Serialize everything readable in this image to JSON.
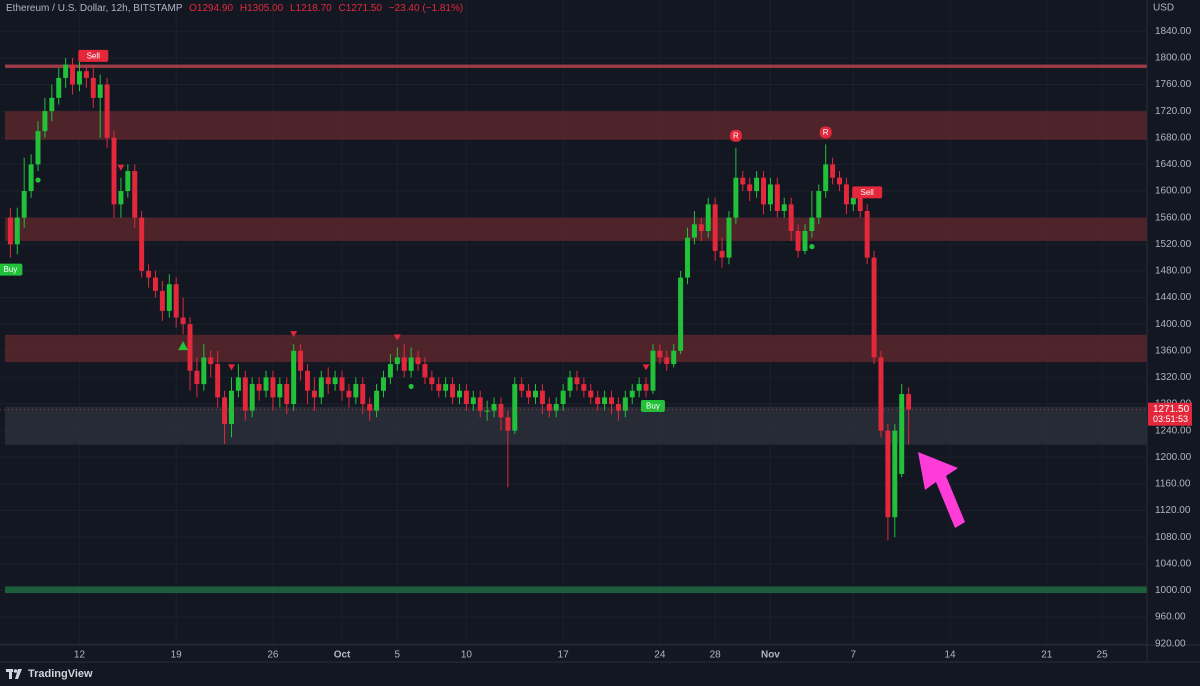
{
  "chart_data": {
    "type": "candlestick",
    "title": "Ethereum / U.S. Dollar, 12h, BITSTAMP",
    "ohlc_legend": [
      "O1294.90",
      "H1305.00",
      "L1218.70",
      "C1271.50",
      "−23.40 (−1.81%)"
    ],
    "currency": "USD",
    "brand": "TradingView",
    "up_color": "#22c13a",
    "down_color": "#e3283c",
    "grid": true,
    "ylim": [
      918,
      1887
    ],
    "yticks": [
      {
        "value": 920,
        "label": "920.00"
      },
      {
        "value": 960,
        "label": "960.00"
      },
      {
        "value": 1000,
        "label": "1000.00"
      },
      {
        "value": 1040,
        "label": "1040.00"
      },
      {
        "value": 1080,
        "label": "1080.00"
      },
      {
        "value": 1120,
        "label": "1120.00"
      },
      {
        "value": 1160,
        "label": "1160.00"
      },
      {
        "value": 1200,
        "label": "1200.00"
      },
      {
        "value": 1240,
        "label": "1240.00"
      },
      {
        "value": 1280,
        "label": "1280.00"
      },
      {
        "value": 1320,
        "label": "1320.00"
      },
      {
        "value": 1360,
        "label": "1360.00"
      },
      {
        "value": 1400,
        "label": "1400.00"
      },
      {
        "value": 1440,
        "label": "1440.00"
      },
      {
        "value": 1480,
        "label": "1480.00"
      },
      {
        "value": 1520,
        "label": "1520.00"
      },
      {
        "value": 1560,
        "label": "1560.00"
      },
      {
        "value": 1600,
        "label": "1600.00"
      },
      {
        "value": 1640,
        "label": "1640.00"
      },
      {
        "value": 1680,
        "label": "1680.00"
      },
      {
        "value": 1720,
        "label": "1720.00"
      },
      {
        "value": 1760,
        "label": "1760.00"
      },
      {
        "value": 1800,
        "label": "1800.00"
      },
      {
        "value": 1840,
        "label": "1840.00"
      }
    ],
    "xlim": [
      -1.5,
      164.5
    ],
    "xticks": [
      {
        "value": 10,
        "label": "12"
      },
      {
        "value": 24,
        "label": "19"
      },
      {
        "value": 38,
        "label": "26"
      },
      {
        "value": 48,
        "label": "Oct"
      },
      {
        "value": 56,
        "label": "5"
      },
      {
        "value": 66,
        "label": "10"
      },
      {
        "value": 80,
        "label": "17"
      },
      {
        "value": 94,
        "label": "24"
      },
      {
        "value": 102,
        "label": "28"
      },
      {
        "value": 110,
        "label": "Nov"
      },
      {
        "value": 122,
        "label": "7"
      },
      {
        "value": 136,
        "label": "14"
      },
      {
        "value": 150,
        "label": "21"
      },
      {
        "value": 158,
        "label": "25"
      }
    ],
    "ohlc": [
      [
        1560,
        1575,
        1500,
        1520
      ],
      [
        1520,
        1575,
        1505,
        1560
      ],
      [
        1560,
        1650,
        1545,
        1600
      ],
      [
        1600,
        1655,
        1590,
        1640
      ],
      [
        1640,
        1705,
        1630,
        1690
      ],
      [
        1690,
        1740,
        1680,
        1720
      ],
      [
        1720,
        1760,
        1705,
        1740
      ],
      [
        1740,
        1785,
        1730,
        1770
      ],
      [
        1770,
        1800,
        1755,
        1790
      ],
      [
        1790,
        1800,
        1745,
        1760
      ],
      [
        1760,
        1795,
        1750,
        1780
      ],
      [
        1780,
        1790,
        1755,
        1770
      ],
      [
        1770,
        1785,
        1725,
        1740
      ],
      [
        1740,
        1775,
        1680,
        1760
      ],
      [
        1760,
        1770,
        1665,
        1680
      ],
      [
        1680,
        1690,
        1560,
        1580
      ],
      [
        1580,
        1620,
        1560,
        1600
      ],
      [
        1600,
        1640,
        1590,
        1630
      ],
      [
        1630,
        1640,
        1545,
        1560
      ],
      [
        1560,
        1570,
        1470,
        1480
      ],
      [
        1480,
        1490,
        1455,
        1470
      ],
      [
        1470,
        1480,
        1440,
        1450
      ],
      [
        1450,
        1465,
        1405,
        1420
      ],
      [
        1420,
        1475,
        1410,
        1460
      ],
      [
        1460,
        1470,
        1395,
        1410
      ],
      [
        1410,
        1440,
        1385,
        1400
      ],
      [
        1400,
        1410,
        1300,
        1330
      ],
      [
        1330,
        1350,
        1290,
        1310
      ],
      [
        1310,
        1370,
        1300,
        1350
      ],
      [
        1350,
        1360,
        1320,
        1340
      ],
      [
        1340,
        1360,
        1275,
        1290
      ],
      [
        1290,
        1300,
        1220,
        1250
      ],
      [
        1250,
        1320,
        1230,
        1300
      ],
      [
        1300,
        1340,
        1290,
        1320
      ],
      [
        1320,
        1330,
        1255,
        1270
      ],
      [
        1270,
        1320,
        1260,
        1310
      ],
      [
        1310,
        1320,
        1285,
        1300
      ],
      [
        1300,
        1330,
        1290,
        1320
      ],
      [
        1320,
        1330,
        1270,
        1290
      ],
      [
        1290,
        1320,
        1275,
        1310
      ],
      [
        1310,
        1320,
        1265,
        1280
      ],
      [
        1280,
        1370,
        1270,
        1360
      ],
      [
        1360,
        1370,
        1315,
        1330
      ],
      [
        1330,
        1340,
        1280,
        1300
      ],
      [
        1300,
        1320,
        1270,
        1290
      ],
      [
        1290,
        1330,
        1280,
        1320
      ],
      [
        1320,
        1335,
        1295,
        1310
      ],
      [
        1310,
        1330,
        1300,
        1320
      ],
      [
        1320,
        1330,
        1285,
        1300
      ],
      [
        1300,
        1310,
        1275,
        1290
      ],
      [
        1290,
        1320,
        1280,
        1310
      ],
      [
        1310,
        1320,
        1265,
        1280
      ],
      [
        1280,
        1290,
        1255,
        1270
      ],
      [
        1270,
        1310,
        1260,
        1300
      ],
      [
        1300,
        1330,
        1290,
        1320
      ],
      [
        1320,
        1355,
        1310,
        1340
      ],
      [
        1340,
        1365,
        1330,
        1350
      ],
      [
        1350,
        1370,
        1320,
        1330
      ],
      [
        1330,
        1365,
        1320,
        1350
      ],
      [
        1350,
        1360,
        1330,
        1340
      ],
      [
        1340,
        1350,
        1310,
        1320
      ],
      [
        1320,
        1330,
        1300,
        1310
      ],
      [
        1310,
        1320,
        1290,
        1300
      ],
      [
        1300,
        1320,
        1290,
        1310
      ],
      [
        1310,
        1320,
        1280,
        1290
      ],
      [
        1290,
        1310,
        1280,
        1300
      ],
      [
        1300,
        1310,
        1270,
        1280
      ],
      [
        1280,
        1300,
        1270,
        1290
      ],
      [
        1290,
        1300,
        1260,
        1270
      ],
      [
        1270,
        1285,
        1255,
        1270
      ],
      [
        1270,
        1290,
        1260,
        1280
      ],
      [
        1280,
        1290,
        1240,
        1260
      ],
      [
        1260,
        1270,
        1155,
        1240
      ],
      [
        1240,
        1320,
        1235,
        1310
      ],
      [
        1310,
        1320,
        1290,
        1300
      ],
      [
        1300,
        1310,
        1280,
        1290
      ],
      [
        1290,
        1310,
        1280,
        1300
      ],
      [
        1300,
        1310,
        1265,
        1280
      ],
      [
        1280,
        1290,
        1260,
        1270
      ],
      [
        1270,
        1290,
        1260,
        1280
      ],
      [
        1280,
        1310,
        1270,
        1300
      ],
      [
        1300,
        1330,
        1290,
        1320
      ],
      [
        1320,
        1330,
        1300,
        1310
      ],
      [
        1310,
        1320,
        1290,
        1300
      ],
      [
        1300,
        1310,
        1280,
        1290
      ],
      [
        1290,
        1300,
        1270,
        1280
      ],
      [
        1280,
        1300,
        1270,
        1290
      ],
      [
        1290,
        1300,
        1265,
        1280
      ],
      [
        1280,
        1290,
        1255,
        1270
      ],
      [
        1270,
        1300,
        1260,
        1290
      ],
      [
        1290,
        1310,
        1280,
        1300
      ],
      [
        1300,
        1320,
        1290,
        1310
      ],
      [
        1310,
        1320,
        1290,
        1300
      ],
      [
        1300,
        1370,
        1295,
        1360
      ],
      [
        1360,
        1370,
        1340,
        1350
      ],
      [
        1350,
        1360,
        1330,
        1340
      ],
      [
        1340,
        1370,
        1335,
        1360
      ],
      [
        1360,
        1480,
        1355,
        1470
      ],
      [
        1470,
        1545,
        1460,
        1530
      ],
      [
        1530,
        1570,
        1520,
        1550
      ],
      [
        1550,
        1560,
        1525,
        1540
      ],
      [
        1540,
        1590,
        1530,
        1580
      ],
      [
        1580,
        1590,
        1495,
        1510
      ],
      [
        1510,
        1530,
        1485,
        1500
      ],
      [
        1500,
        1570,
        1490,
        1560
      ],
      [
        1560,
        1665,
        1550,
        1620
      ],
      [
        1620,
        1630,
        1600,
        1610
      ],
      [
        1610,
        1620,
        1585,
        1600
      ],
      [
        1600,
        1630,
        1590,
        1620
      ],
      [
        1620,
        1630,
        1565,
        1580
      ],
      [
        1580,
        1620,
        1570,
        1610
      ],
      [
        1610,
        1620,
        1560,
        1570
      ],
      [
        1570,
        1590,
        1560,
        1580
      ],
      [
        1580,
        1590,
        1525,
        1540
      ],
      [
        1540,
        1550,
        1500,
        1510
      ],
      [
        1510,
        1550,
        1505,
        1540
      ],
      [
        1540,
        1600,
        1530,
        1560
      ],
      [
        1560,
        1610,
        1550,
        1600
      ],
      [
        1600,
        1670,
        1590,
        1640
      ],
      [
        1640,
        1650,
        1610,
        1620
      ],
      [
        1620,
        1630,
        1600,
        1610
      ],
      [
        1610,
        1620,
        1565,
        1580
      ],
      [
        1580,
        1600,
        1570,
        1590
      ],
      [
        1590,
        1600,
        1560,
        1570
      ],
      [
        1570,
        1580,
        1490,
        1500
      ],
      [
        1500,
        1510,
        1340,
        1350
      ],
      [
        1350,
        1360,
        1230,
        1240
      ],
      [
        1240,
        1250,
        1075,
        1110
      ],
      [
        1110,
        1250,
        1080,
        1240
      ],
      [
        1175,
        1310,
        1170,
        1295
      ],
      [
        1294.9,
        1305,
        1218.7,
        1271.5
      ]
    ],
    "zones": [
      {
        "low": 1785,
        "high": 1790,
        "color": "#b8434d"
      },
      {
        "low": 1677,
        "high": 1720,
        "color": "#5a262c"
      },
      {
        "low": 1525,
        "high": 1560,
        "color": "#5a262c"
      },
      {
        "low": 1343,
        "high": 1384,
        "color": "#5a262c"
      },
      {
        "low": 1219,
        "high": 1276,
        "color": "#2c2f38"
      },
      {
        "low": 996,
        "high": 1006,
        "color": "#1f6a3f"
      }
    ],
    "signals": [
      {
        "index": 0,
        "shape": "label",
        "side": "below",
        "label": "Buy",
        "color": "#22c13a"
      },
      {
        "index": 12,
        "shape": "label",
        "side": "above",
        "label": "Sell",
        "color": "#e3283c"
      },
      {
        "index": 16,
        "shape": "triangle",
        "side": "above",
        "color": "#e3283c"
      },
      {
        "index": 4,
        "shape": "dot",
        "side": "below",
        "color": "#22c13a"
      },
      {
        "index": 25,
        "shape": "triangle",
        "side": "below",
        "color": "#22c13a"
      },
      {
        "index": 32,
        "shape": "triangle",
        "side": "above",
        "color": "#e3283c"
      },
      {
        "index": 41,
        "shape": "triangle",
        "side": "above",
        "color": "#e3283c"
      },
      {
        "index": 56,
        "shape": "triangle",
        "side": "above",
        "color": "#e3283c"
      },
      {
        "index": 58,
        "shape": "dot",
        "side": "below",
        "color": "#22c13a"
      },
      {
        "index": 92,
        "shape": "triangle",
        "side": "above",
        "color": "#e3283c"
      },
      {
        "index": 93,
        "shape": "label",
        "side": "below",
        "label": "Buy",
        "color": "#22c13a"
      },
      {
        "index": 105,
        "shape": "label",
        "side": "above",
        "label": "R",
        "color": "#e3283c"
      },
      {
        "index": 116,
        "shape": "dot",
        "side": "below",
        "color": "#22c13a"
      },
      {
        "index": 118,
        "shape": "label",
        "side": "above",
        "label": "R",
        "color": "#e3283c"
      },
      {
        "index": 124,
        "shape": "label",
        "side": "above",
        "label": "Sell",
        "color": "#e3283c"
      }
    ],
    "last_price": {
      "value": 1271.5,
      "label": "1271.50",
      "countdown": "03:51:53"
    }
  }
}
